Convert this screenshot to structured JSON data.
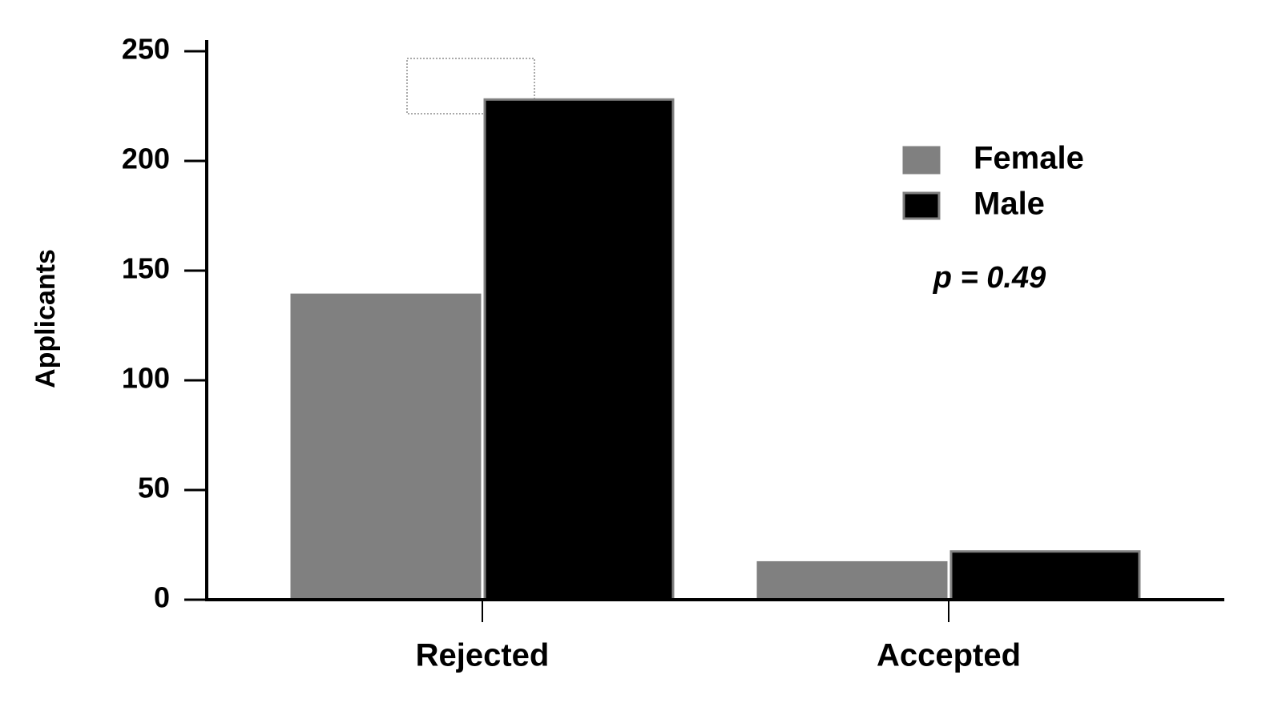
{
  "chart_data": {
    "type": "bar",
    "y_label": "Applicants",
    "annotation": "p = 0.49",
    "categories": [
      "Rejected",
      "Accepted"
    ],
    "series": [
      {
        "name": "Female",
        "color": "#808080",
        "values": [
          139,
          17
        ]
      },
      {
        "name": "Male",
        "color": "#000000",
        "values": [
          228,
          22
        ]
      }
    ],
    "ylim": [
      0,
      250
    ],
    "yticks": [
      0,
      50,
      100,
      150,
      200,
      250
    ],
    "grid": false,
    "legend": "upper right"
  }
}
